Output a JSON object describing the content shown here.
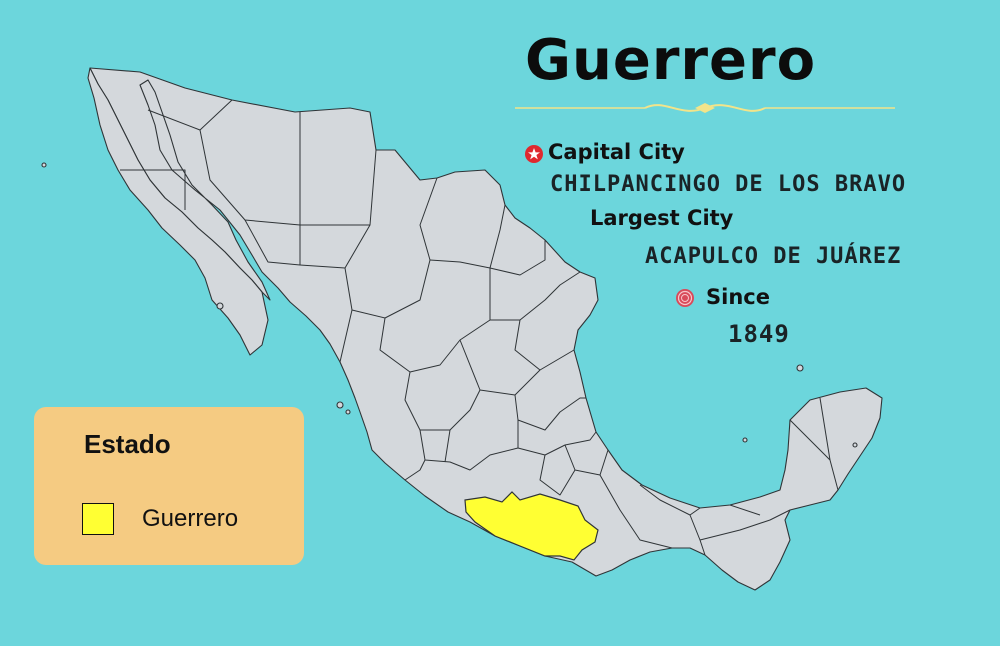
{
  "title": "Guerrero",
  "colors": {
    "ocean": "#6cd6dc",
    "land": "#d4d8dc",
    "highlight": "#ffff33",
    "legend_bg": "#f5cb82",
    "ornament": "#f2e48a",
    "capital_marker": "#e0282e"
  },
  "info": {
    "capital_heading": "Capital City",
    "capital_value": "CHILPANCINGO DE LOS BRAVO",
    "largest_heading": "Largest City",
    "largest_value": "ACAPULCO DE JUÁREZ",
    "since_heading": "Since",
    "since_value": "1849"
  },
  "icons": {
    "capital": "star-icon",
    "since": "seal-icon"
  },
  "legend": {
    "title": "Estado",
    "items": [
      {
        "label": "Guerrero",
        "color": "#ffff33"
      }
    ]
  },
  "map": {
    "country": "Mexico",
    "highlighted_state": "Guerrero"
  }
}
